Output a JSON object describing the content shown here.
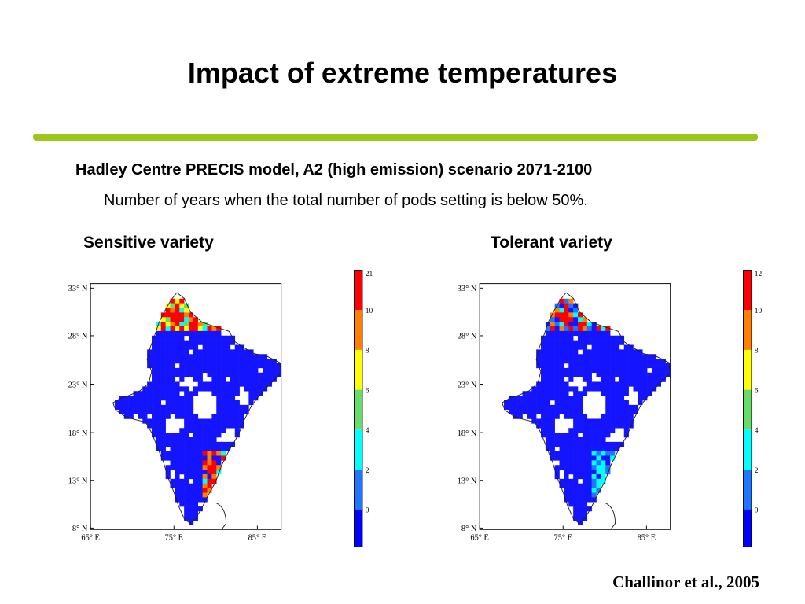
{
  "slide": {
    "title": "Impact of extreme temperatures",
    "subtitle": "Hadley Centre PRECIS model, A2 (high emission) scenario 2071-2100",
    "description": "Number of years when the total number of pods setting is below 50%.",
    "citation": "Challinor et al., 2005",
    "accent_color": "#9dc61a"
  },
  "chart_data": [
    {
      "type": "heatmap",
      "title": "Sensitive variety",
      "y_ticks": [
        "33° N",
        "28° N",
        "23° N",
        "18° N",
        "13° N",
        "8° N"
      ],
      "x_ticks": [
        "65° E",
        "75° E",
        "85° E"
      ],
      "colorbar": {
        "labels": [
          "21",
          "10",
          "8",
          "6",
          "4",
          "2",
          "0",
          "0"
        ],
        "colors": [
          "#ff0000",
          "#ff7f00",
          "#ffff00",
          "#66dd66",
          "#00ffff",
          "#1f77ff",
          "#0000ff"
        ]
      },
      "dominant_value_color": "#1414ff",
      "hotspots": [
        "Himalayan foothills (north): red/orange/yellow",
        "South-east coast: red/orange"
      ]
    },
    {
      "type": "heatmap",
      "title": "Tolerant variety",
      "y_ticks": [
        "33° N",
        "28° N",
        "23° N",
        "18° N",
        "13° N",
        "8° N"
      ],
      "x_ticks": [
        "65° E",
        "75° E",
        "85° E"
      ],
      "colorbar": {
        "labels": [
          "12",
          "10",
          "8",
          "6",
          "4",
          "2",
          "0",
          "0"
        ],
        "colors": [
          "#ff0000",
          "#ff7f00",
          "#ffff00",
          "#66dd66",
          "#00ffff",
          "#1f77ff",
          "#0000ff"
        ]
      },
      "dominant_value_color": "#1414ff",
      "hotspots": [
        "Himalayan foothills (north): red/orange/cyan",
        "South-east coast: cyan/light blue"
      ]
    }
  ]
}
